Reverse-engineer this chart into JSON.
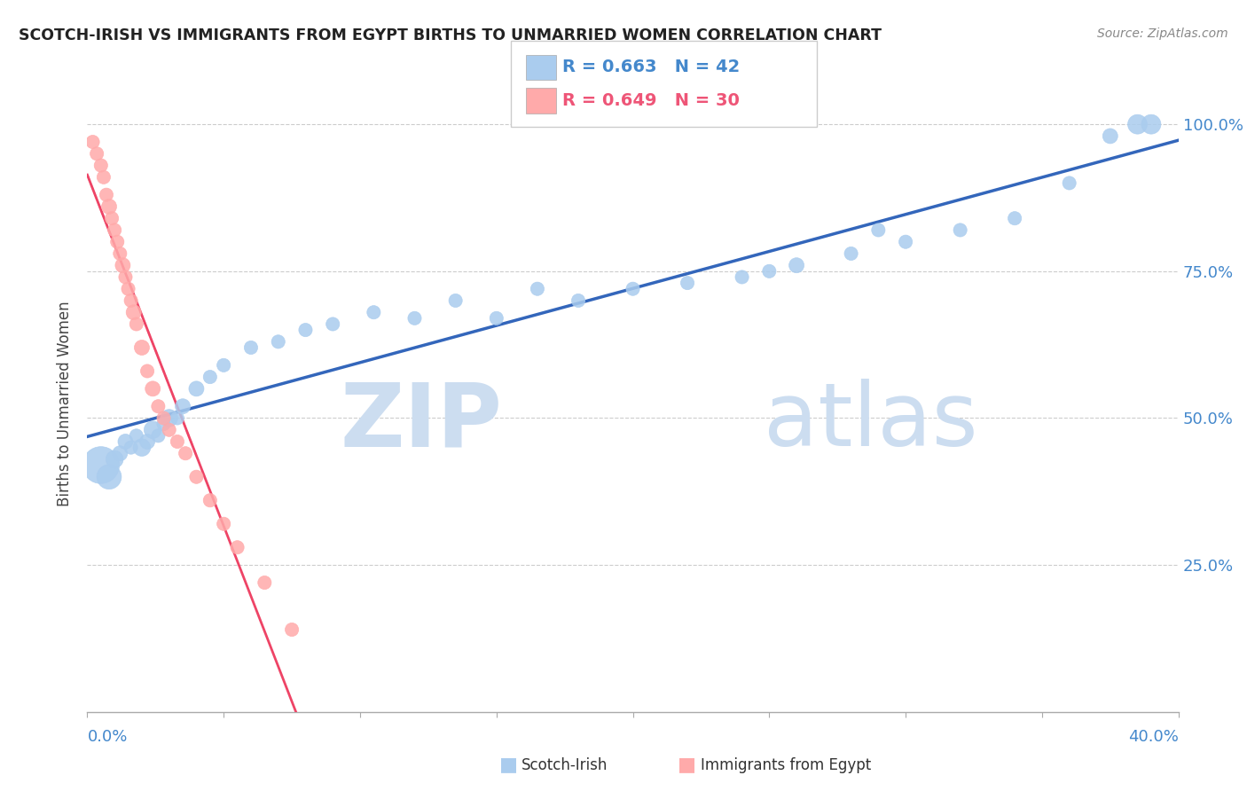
{
  "title": "SCOTCH-IRISH VS IMMIGRANTS FROM EGYPT BIRTHS TO UNMARRIED WOMEN CORRELATION CHART",
  "source_text": "Source: ZipAtlas.com",
  "ylabel": "Births to Unmarried Women",
  "xlim": [
    0.0,
    40.0
  ],
  "ylim": [
    0.0,
    105.0
  ],
  "ytick_vals": [
    25,
    50,
    75,
    100
  ],
  "ytick_labels": [
    "25.0%",
    "50.0%",
    "75.0%",
    "100.0%"
  ],
  "xtick_left_label": "0.0%",
  "xtick_right_label": "40.0%",
  "legend_blue_text": "R = 0.663   N = 42",
  "legend_pink_text": "R = 0.649   N = 30",
  "legend_blue_color": "#4488CC",
  "legend_pink_color": "#EE5577",
  "blue_scatter_color": "#AACCEE",
  "pink_scatter_color": "#FFAAAA",
  "blue_line_color": "#3366BB",
  "pink_line_color": "#EE4466",
  "watermark_zip": "ZIP",
  "watermark_atlas": "atlas",
  "watermark_color": "#CCDDF0",
  "bottom_legend_scotch": "Scotch-Irish",
  "bottom_legend_egypt": "Immigrants from Egypt",
  "scotch_irish_data": [
    [
      0.5,
      42,
      900
    ],
    [
      0.8,
      40,
      400
    ],
    [
      1.0,
      43,
      200
    ],
    [
      1.2,
      44,
      150
    ],
    [
      1.4,
      46,
      150
    ],
    [
      1.6,
      45,
      120
    ],
    [
      1.8,
      47,
      120
    ],
    [
      2.0,
      45,
      200
    ],
    [
      2.2,
      46,
      150
    ],
    [
      2.4,
      48,
      200
    ],
    [
      2.6,
      47,
      120
    ],
    [
      2.8,
      49,
      120
    ],
    [
      3.0,
      50,
      200
    ],
    [
      3.3,
      50,
      120
    ],
    [
      3.5,
      52,
      150
    ],
    [
      4.0,
      55,
      150
    ],
    [
      4.5,
      57,
      120
    ],
    [
      5.0,
      59,
      120
    ],
    [
      6.0,
      62,
      120
    ],
    [
      7.0,
      63,
      120
    ],
    [
      8.0,
      65,
      120
    ],
    [
      9.0,
      66,
      120
    ],
    [
      10.5,
      68,
      120
    ],
    [
      12.0,
      67,
      120
    ],
    [
      13.5,
      70,
      120
    ],
    [
      15.0,
      67,
      120
    ],
    [
      16.5,
      72,
      120
    ],
    [
      18.0,
      70,
      120
    ],
    [
      20.0,
      72,
      120
    ],
    [
      22.0,
      73,
      120
    ],
    [
      24.0,
      74,
      120
    ],
    [
      26.0,
      76,
      150
    ],
    [
      28.0,
      78,
      120
    ],
    [
      30.0,
      80,
      120
    ],
    [
      32.0,
      82,
      120
    ],
    [
      34.0,
      84,
      120
    ],
    [
      36.0,
      90,
      120
    ],
    [
      37.5,
      98,
      150
    ],
    [
      38.5,
      100,
      250
    ],
    [
      39.0,
      100,
      250
    ],
    [
      29.0,
      82,
      120
    ],
    [
      25.0,
      75,
      120
    ]
  ],
  "egypt_data": [
    [
      0.2,
      97,
      120
    ],
    [
      0.35,
      95,
      120
    ],
    [
      0.5,
      93,
      120
    ],
    [
      0.6,
      91,
      120
    ],
    [
      0.7,
      88,
      120
    ],
    [
      0.8,
      86,
      150
    ],
    [
      0.9,
      84,
      120
    ],
    [
      1.0,
      82,
      120
    ],
    [
      1.1,
      80,
      120
    ],
    [
      1.2,
      78,
      120
    ],
    [
      1.3,
      76,
      150
    ],
    [
      1.4,
      74,
      120
    ],
    [
      1.5,
      72,
      120
    ],
    [
      1.6,
      70,
      120
    ],
    [
      1.7,
      68,
      150
    ],
    [
      1.8,
      66,
      120
    ],
    [
      2.0,
      62,
      150
    ],
    [
      2.2,
      58,
      120
    ],
    [
      2.4,
      55,
      150
    ],
    [
      2.6,
      52,
      120
    ],
    [
      2.8,
      50,
      120
    ],
    [
      3.0,
      48,
      120
    ],
    [
      3.3,
      46,
      120
    ],
    [
      3.6,
      44,
      120
    ],
    [
      4.0,
      40,
      120
    ],
    [
      4.5,
      36,
      120
    ],
    [
      5.0,
      32,
      120
    ],
    [
      5.5,
      28,
      120
    ],
    [
      6.5,
      22,
      120
    ],
    [
      7.5,
      14,
      120
    ]
  ]
}
